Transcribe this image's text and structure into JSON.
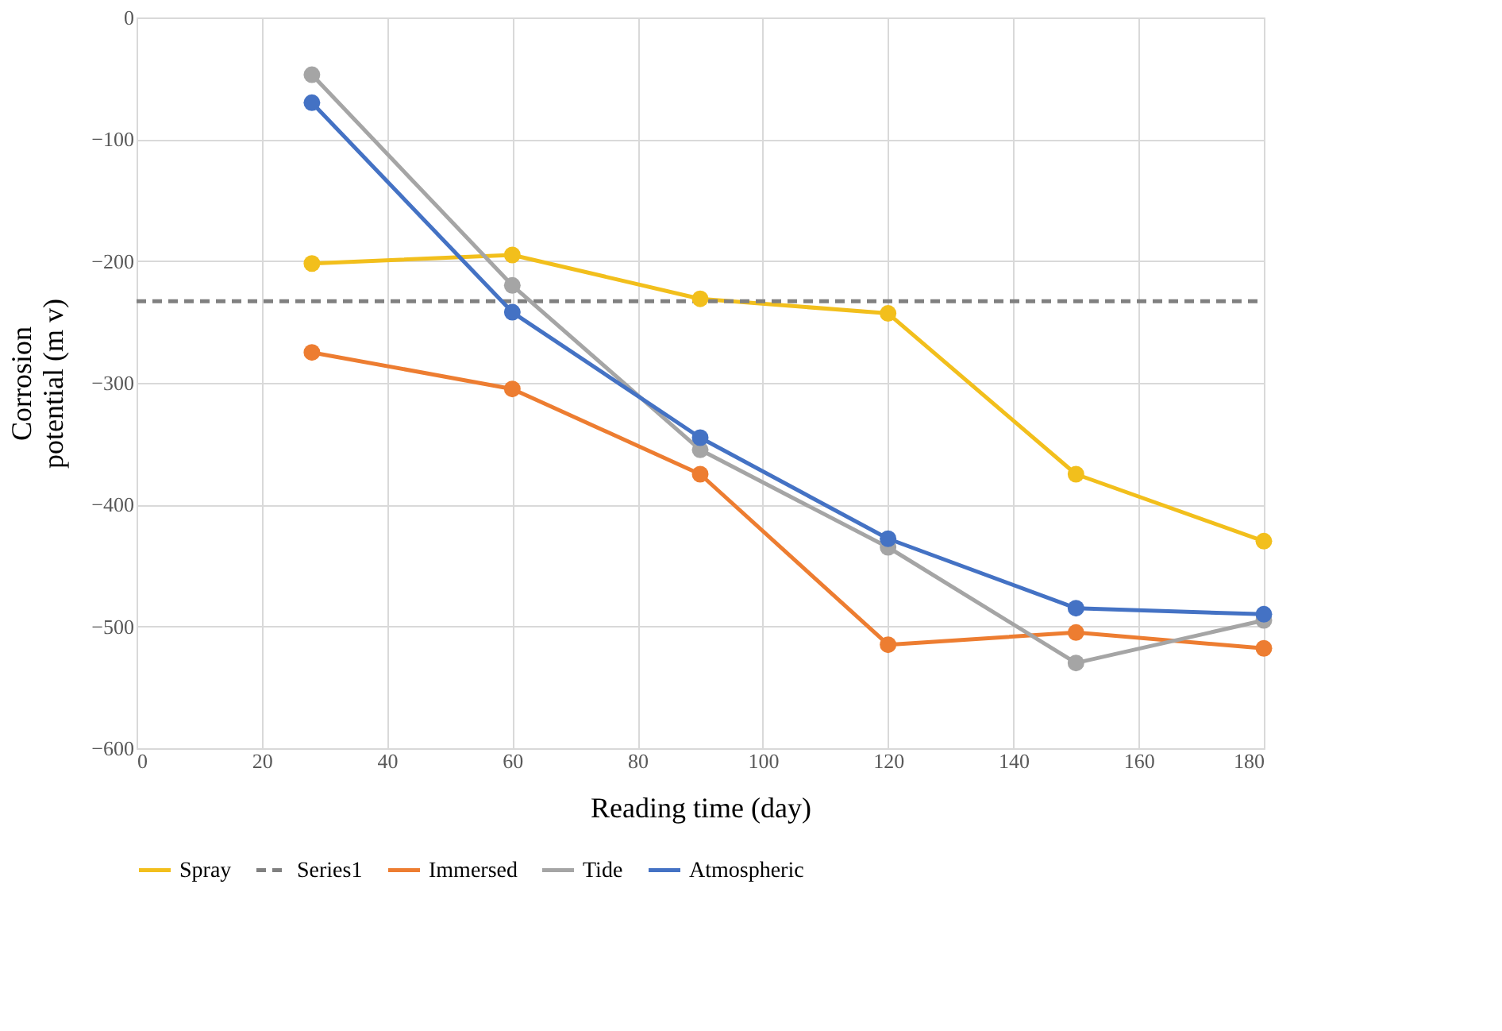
{
  "chart_data": {
    "type": "line",
    "xlabel": "Reading time (day)",
    "ylabel": "Corrosion potential (m v)",
    "x": [
      28,
      60,
      90,
      120,
      150,
      180
    ],
    "series": [
      {
        "name": "Spray",
        "color": "#f2bf1c",
        "values": [
          -202,
          -195,
          -231,
          -243,
          -375,
          -430
        ]
      },
      {
        "name": "Series1",
        "color": "#808080",
        "x": [
          0,
          180
        ],
        "values": [
          -233,
          -233
        ],
        "line_style": "dashed",
        "marker": "none"
      },
      {
        "name": "Immersed",
        "color": "#ed7d31",
        "values": [
          -275,
          -305,
          -375,
          -515,
          -505,
          -518
        ]
      },
      {
        "name": "Tide",
        "color": "#a5a5a5",
        "values": [
          -47,
          -220,
          -355,
          -435,
          -530,
          -495
        ]
      },
      {
        "name": "Atmospheric",
        "color": "#4472c4",
        "values": [
          -70,
          -242,
          -345,
          -428,
          -485,
          -490
        ]
      }
    ],
    "xlim": [
      0,
      180
    ],
    "xticks": [
      0,
      20,
      40,
      60,
      80,
      100,
      120,
      140,
      160,
      180
    ],
    "ylim": [
      -600,
      0
    ],
    "yticks": [
      -600,
      -500,
      -400,
      -300,
      -200,
      -100,
      0
    ],
    "grid": true,
    "legend": "bottom",
    "marker": "circle",
    "line_style": "solid"
  }
}
